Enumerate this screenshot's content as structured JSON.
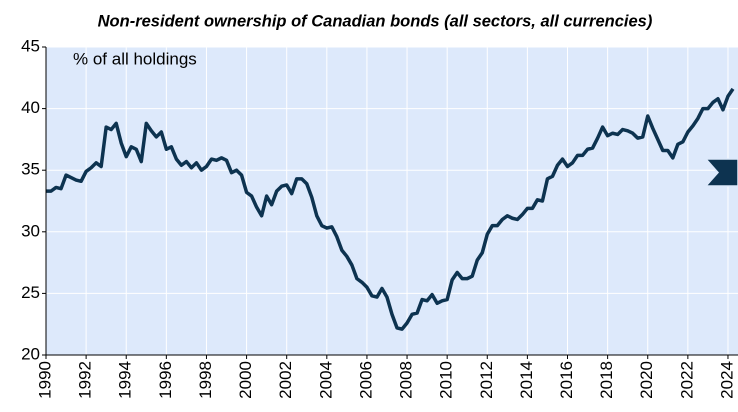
{
  "chart_data": {
    "type": "line",
    "title": "Non-resident ownership of Canadian bonds (all sectors, all currencies)",
    "y_label": "% of all holdings",
    "xlim": [
      1990,
      2024.5
    ],
    "ylim": [
      20,
      45
    ],
    "xticks": [
      1990,
      1992,
      1994,
      1996,
      1998,
      2000,
      2002,
      2004,
      2006,
      2008,
      2010,
      2012,
      2014,
      2016,
      2018,
      2020,
      2022,
      2024
    ],
    "yticks": [
      20,
      25,
      30,
      35,
      40,
      45
    ],
    "grid": true,
    "x": [
      1990,
      1990.25,
      1990.5,
      1990.75,
      1991,
      1991.25,
      1991.5,
      1991.75,
      1992,
      1992.25,
      1992.5,
      1992.75,
      1993,
      1993.25,
      1993.5,
      1993.75,
      1994,
      1994.25,
      1994.5,
      1994.75,
      1995,
      1995.25,
      1995.5,
      1995.75,
      1996,
      1996.25,
      1996.5,
      1996.75,
      1997,
      1997.25,
      1997.5,
      1997.75,
      1998,
      1998.25,
      1998.5,
      1998.75,
      1999,
      1999.25,
      1999.5,
      1999.75,
      2000,
      2000.25,
      2000.5,
      2000.75,
      2001,
      2001.25,
      2001.5,
      2001.75,
      2002,
      2002.25,
      2002.5,
      2002.75,
      2003,
      2003.25,
      2003.5,
      2003.75,
      2004,
      2004.25,
      2004.5,
      2004.75,
      2005,
      2005.25,
      2005.5,
      2005.75,
      2006,
      2006.25,
      2006.5,
      2006.75,
      2007,
      2007.25,
      2007.5,
      2007.75,
      2008,
      2008.25,
      2008.5,
      2008.75,
      2009,
      2009.25,
      2009.5,
      2009.75,
      2010,
      2010.25,
      2010.5,
      2010.75,
      2011,
      2011.25,
      2011.5,
      2011.75,
      2012,
      2012.25,
      2012.5,
      2012.75,
      2013,
      2013.25,
      2013.5,
      2013.75,
      2014,
      2014.25,
      2014.5,
      2014.75,
      2015,
      2015.25,
      2015.5,
      2015.75,
      2016,
      2016.25,
      2016.5,
      2016.75,
      2017,
      2017.25,
      2017.5,
      2017.75,
      2018,
      2018.25,
      2018.5,
      2018.75,
      2019,
      2019.25,
      2019.5,
      2019.75,
      2020,
      2020.25,
      2020.5,
      2020.75,
      2021,
      2021.25,
      2021.5,
      2021.75,
      2022,
      2022.25,
      2022.5,
      2022.75,
      2023,
      2023.25,
      2023.5,
      2023.75,
      2024,
      2024.25
    ],
    "series": [
      {
        "color": "#0d3350",
        "values": [
          33.3,
          33.3,
          33.6,
          33.5,
          34.6,
          34.4,
          34.2,
          34.1,
          34.9,
          35.2,
          35.6,
          35.3,
          38.5,
          38.3,
          38.8,
          37.2,
          36.1,
          36.9,
          36.7,
          35.7,
          38.8,
          38.2,
          37.7,
          38.1,
          36.7,
          36.9,
          35.9,
          35.4,
          35.7,
          35.2,
          35.6,
          35.0,
          35.3,
          35.9,
          35.8,
          36.0,
          35.8,
          34.8,
          35.0,
          34.6,
          33.2,
          32.9,
          32.0,
          31.3,
          32.9,
          32.2,
          33.3,
          33.7,
          33.8,
          33.1,
          34.3,
          34.3,
          33.9,
          32.8,
          31.3,
          30.5,
          30.3,
          30.4,
          29.6,
          28.5,
          28.0,
          27.3,
          26.2,
          25.9,
          25.5,
          24.8,
          24.7,
          25.4,
          24.7,
          23.3,
          22.2,
          22.1,
          22.6,
          23.3,
          23.4,
          24.5,
          24.4,
          24.9,
          24.2,
          24.4,
          24.5,
          26.1,
          26.7,
          26.2,
          26.2,
          26.4,
          27.7,
          28.3,
          29.8,
          30.5,
          30.5,
          31.0,
          31.3,
          31.1,
          31.0,
          31.4,
          31.9,
          31.9,
          32.6,
          32.5,
          34.3,
          34.5,
          35.4,
          35.9,
          35.3,
          35.6,
          36.2,
          36.2,
          36.7,
          36.8,
          37.6,
          38.5,
          37.8,
          38.0,
          37.9,
          38.3,
          38.2,
          38.0,
          37.6,
          37.7,
          39.4,
          38.4,
          37.5,
          36.6,
          36.6,
          36.0,
          37.1,
          37.3,
          38.1,
          38.6,
          39.2,
          40.0,
          40.0,
          40.5,
          40.8,
          39.9,
          41.0,
          41.6
        ]
      }
    ]
  }
}
